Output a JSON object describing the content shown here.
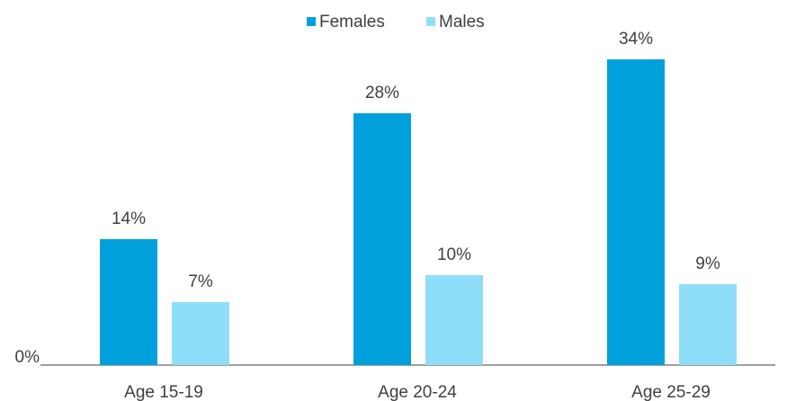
{
  "chart_data": {
    "type": "bar",
    "categories": [
      "Age 15-19",
      "Age 20-24",
      "Age 25-29"
    ],
    "series": [
      {
        "name": "Females",
        "color": "#00a0dc",
        "values": [
          14,
          28,
          34
        ],
        "value_labels": [
          "14%",
          "28%",
          "34%"
        ]
      },
      {
        "name": "Males",
        "color": "#8fdef9",
        "values": [
          7,
          10,
          9
        ],
        "value_labels": [
          "7%",
          "10%",
          "9%"
        ]
      }
    ],
    "ylim": [
      0,
      40
    ],
    "yticks": [
      {
        "value": 0,
        "label": "0%"
      }
    ],
    "legend": "top"
  }
}
